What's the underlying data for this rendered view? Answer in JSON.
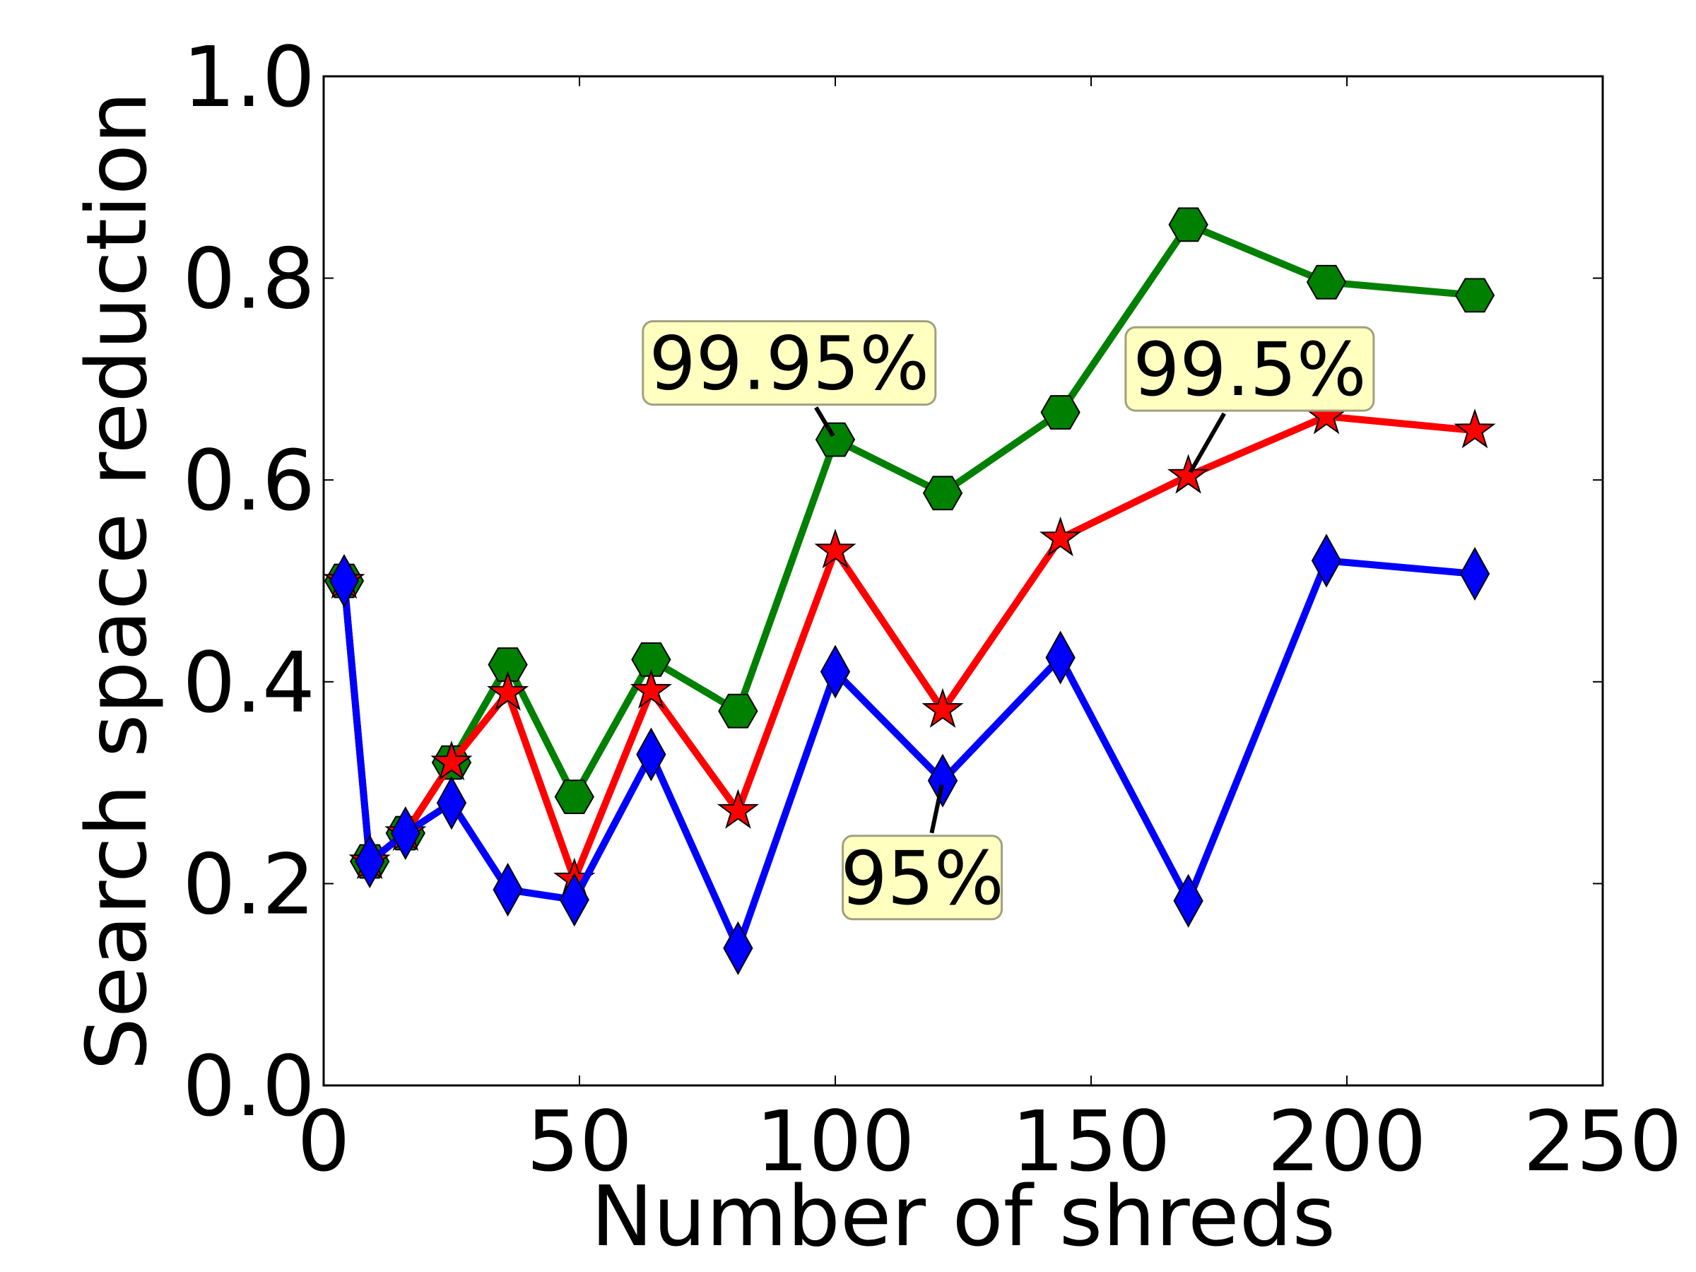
{
  "chart_data": {
    "type": "line",
    "title": "",
    "xlabel": "Number of shreds",
    "ylabel": "Search space reduction",
    "xlim": [
      0,
      250
    ],
    "ylim": [
      0.0,
      1.0
    ],
    "xticks": [
      0,
      50,
      100,
      150,
      200,
      250
    ],
    "yticks": [
      0.0,
      0.2,
      0.4,
      0.6,
      0.8,
      1.0
    ],
    "xtick_labels": [
      "0",
      "50",
      "100",
      "150",
      "200",
      "250"
    ],
    "ytick_labels": [
      "0.0",
      "0.2",
      "0.4",
      "0.6",
      "0.8",
      "1.0"
    ],
    "grid": false,
    "series": [
      {
        "color": "#008000",
        "marker": "hexagon",
        "points": [
          [
            4,
            0.5
          ],
          [
            9,
            0.222
          ],
          [
            16,
            0.25
          ],
          [
            25,
            0.32
          ],
          [
            36,
            0.417
          ],
          [
            49,
            0.286
          ],
          [
            64,
            0.422
          ],
          [
            81,
            0.371
          ],
          [
            100,
            0.64
          ],
          [
            121,
            0.587
          ],
          [
            144,
            0.667
          ],
          [
            169,
            0.853
          ],
          [
            196,
            0.796
          ],
          [
            225,
            0.783
          ]
        ]
      },
      {
        "color": "#ff0000",
        "marker": "star",
        "points": [
          [
            4,
            0.5
          ],
          [
            9,
            0.222
          ],
          [
            16,
            0.25
          ],
          [
            25,
            0.32
          ],
          [
            36,
            0.389
          ],
          [
            49,
            0.204
          ],
          [
            64,
            0.391
          ],
          [
            81,
            0.272
          ],
          [
            100,
            0.53
          ],
          [
            121,
            0.372
          ],
          [
            144,
            0.542
          ],
          [
            169,
            0.604
          ],
          [
            196,
            0.663
          ],
          [
            225,
            0.649
          ]
        ]
      },
      {
        "color": "#0000ff",
        "marker": "diamond",
        "points": [
          [
            4,
            0.5
          ],
          [
            9,
            0.222
          ],
          [
            16,
            0.25
          ],
          [
            25,
            0.28
          ],
          [
            36,
            0.194
          ],
          [
            49,
            0.184
          ],
          [
            64,
            0.328
          ],
          [
            81,
            0.136
          ],
          [
            100,
            0.41
          ],
          [
            121,
            0.302
          ],
          [
            144,
            0.424
          ],
          [
            169,
            0.183
          ],
          [
            196,
            0.52
          ],
          [
            225,
            0.507
          ]
        ]
      }
    ],
    "annotations": [
      {
        "text": "99.95%",
        "target": [
          100,
          0.64
        ],
        "box_center": [
          91,
          0.716
        ]
      },
      {
        "text": "99.5%",
        "target": [
          169,
          0.604
        ],
        "box_center": [
          181,
          0.71
        ]
      },
      {
        "text": "95%",
        "target": [
          121,
          0.302
        ],
        "box_center": [
          117,
          0.206
        ]
      }
    ],
    "annotation_box_fill": "#ffffc0",
    "annotation_box_edge": "#a0a080"
  }
}
